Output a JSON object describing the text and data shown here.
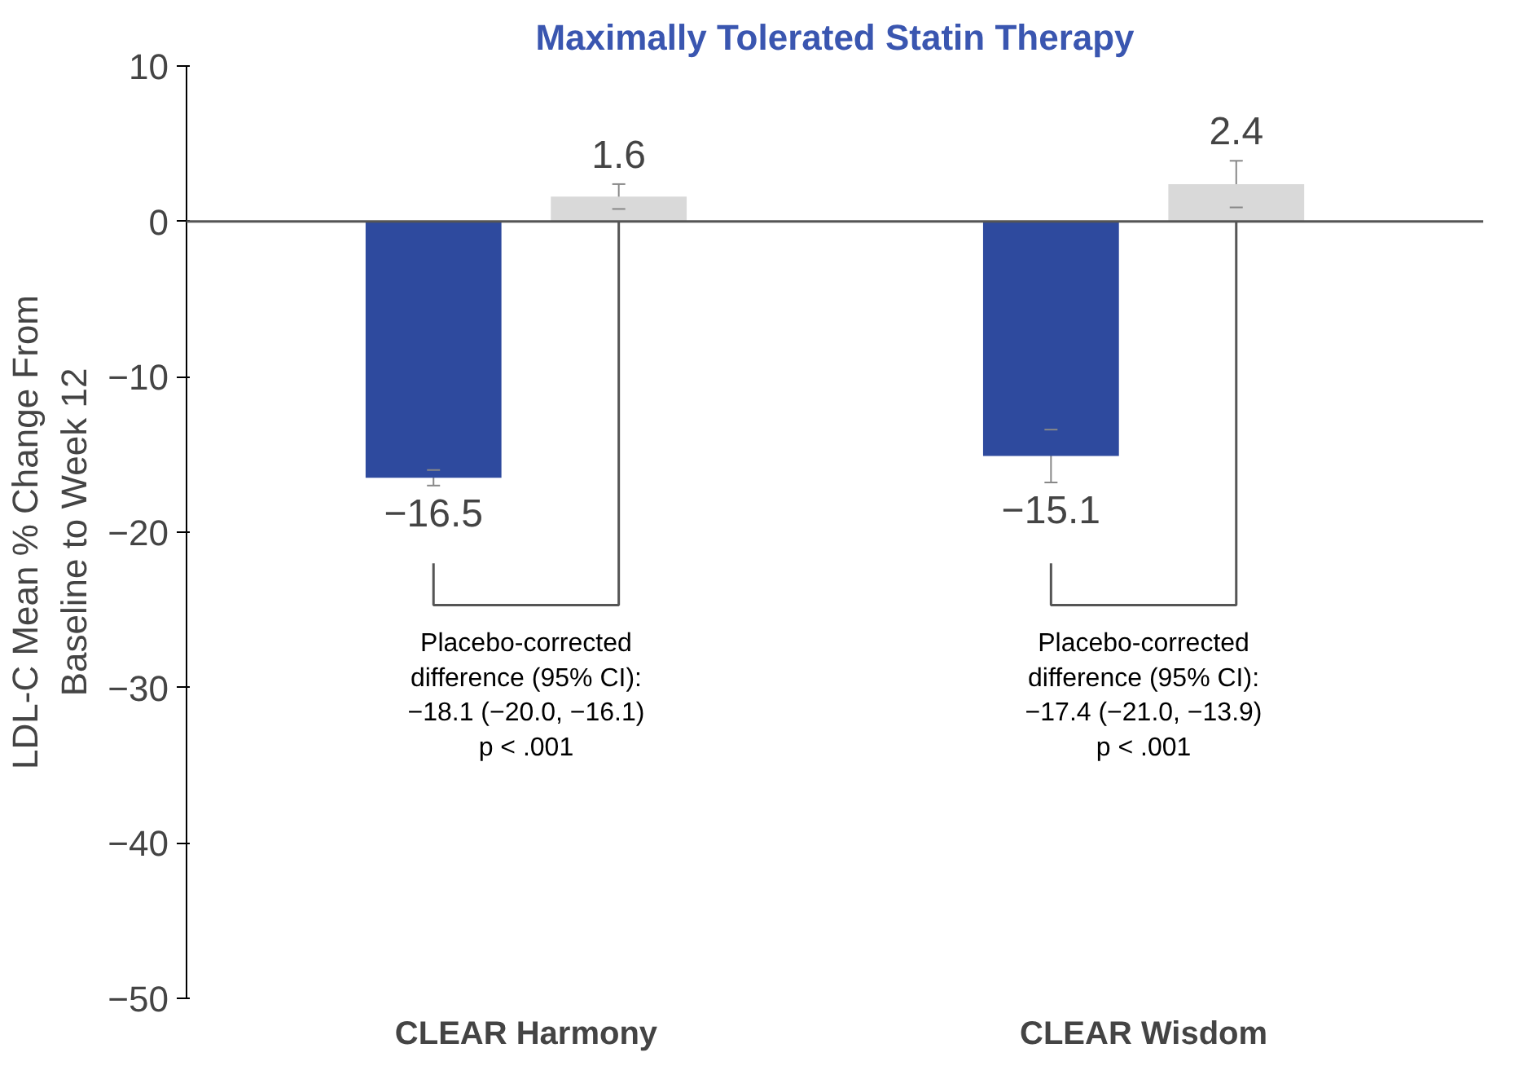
{
  "chart_data": {
    "type": "bar",
    "title": "Maximally Tolerated Statin Therapy",
    "ylabel": "LDL-C Mean % Change From\nBaseline to Week 12",
    "categories": [
      "CLEAR Harmony",
      "CLEAR Wisdom"
    ],
    "series": [
      {
        "color": "#2e4a9e",
        "values": [
          -16.5,
          -15.1
        ],
        "errors": [
          0.5,
          1.7
        ]
      },
      {
        "color": "#d9d9d9",
        "values": [
          1.6,
          2.4
        ],
        "errors": [
          0.8,
          1.5
        ]
      }
    ],
    "ylim": [
      -50,
      10
    ],
    "yticks": [
      -50,
      -40,
      -30,
      -20,
      -10,
      0,
      10
    ],
    "data_labels": true,
    "grid": false,
    "ref_lines": [
      {
        "axis": "y",
        "value": 0
      }
    ],
    "annotations": [
      "Placebo-corrected\ndifference (95% CI):\n−18.1 (−20.0, −16.1)\np < .001",
      "Placebo-corrected\ndifference (95% CI):\n−17.4 (−21.0, −13.9)\np < .001"
    ]
  }
}
